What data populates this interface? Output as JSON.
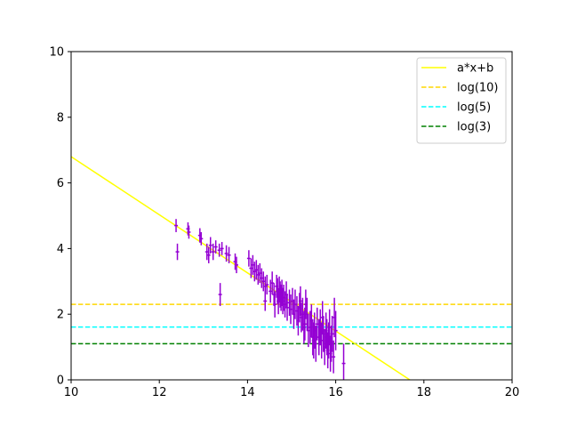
{
  "chart_data": {
    "type": "scatter",
    "xlim": [
      10,
      20
    ],
    "ylim": [
      0,
      10
    ],
    "x_ticks": [
      "10",
      "12",
      "14",
      "16",
      "18",
      "20"
    ],
    "y_ticks": [
      "0",
      "2",
      "4",
      "6",
      "8",
      "10"
    ],
    "grid": false,
    "legend_position": "top-right",
    "fit_line": {
      "name": "a*x+b",
      "color": "#ffff00",
      "x": [
        10,
        17.68
      ],
      "y": [
        6.8,
        0
      ]
    },
    "hlines": [
      {
        "name": "log(10)",
        "value": 2.3,
        "color": "#ffd700",
        "style": "dashed"
      },
      {
        "name": "log(5)",
        "value": 1.61,
        "color": "#00ffff",
        "style": "dashed"
      },
      {
        "name": "log(3)",
        "value": 1.1,
        "color": "#008000",
        "style": "dashed"
      }
    ],
    "points": {
      "color": "#9400d3",
      "x": [
        12.38,
        12.41,
        12.65,
        12.67,
        12.92,
        12.95,
        13.08,
        13.12,
        13.16,
        13.22,
        13.28,
        13.36,
        13.38,
        13.42,
        13.52,
        13.58,
        13.72,
        13.75,
        14.03,
        14.08,
        14.12,
        14.16,
        14.2,
        14.24,
        14.28,
        14.32,
        14.36,
        14.4,
        14.4,
        14.44,
        14.52,
        14.56,
        14.6,
        14.62,
        14.66,
        14.68,
        14.7,
        14.72,
        14.74,
        14.76,
        14.78,
        14.8,
        14.82,
        14.85,
        14.88,
        14.9,
        14.95,
        14.98,
        15.02,
        15.05,
        15.08,
        15.12,
        15.15,
        15.18,
        15.2,
        15.22,
        15.25,
        15.28,
        15.3,
        15.32,
        15.35,
        15.38,
        15.42,
        15.45,
        15.48,
        15.5,
        15.52,
        15.55,
        15.58,
        15.62,
        15.65,
        15.68,
        15.7,
        15.72,
        15.75,
        15.78,
        15.8,
        15.82,
        15.84,
        15.86,
        15.88,
        15.9,
        15.92,
        15.95,
        15.97,
        16.0,
        16.18
      ],
      "y": [
        4.7,
        3.9,
        4.6,
        4.5,
        4.4,
        4.3,
        3.9,
        3.8,
        4.1,
        3.9,
        4.05,
        3.95,
        2.6,
        4.0,
        3.85,
        3.8,
        3.6,
        3.5,
        3.7,
        3.4,
        3.5,
        3.3,
        3.35,
        3.2,
        3.25,
        3.1,
        3.0,
        2.85,
        2.4,
        2.9,
        2.7,
        2.95,
        2.6,
        2.3,
        2.85,
        2.7,
        2.4,
        2.75,
        2.6,
        2.5,
        2.65,
        2.4,
        2.5,
        2.3,
        2.6,
        2.2,
        2.35,
        2.15,
        2.4,
        2.0,
        2.3,
        2.1,
        1.8,
        2.2,
        2.4,
        1.9,
        2.0,
        1.6,
        1.7,
        2.3,
        2.0,
        1.5,
        1.6,
        1.8,
        1.3,
        1.2,
        1.5,
        1.1,
        1.7,
        1.3,
        1.6,
        1.2,
        1.9,
        1.4,
        1.0,
        1.5,
        1.3,
        0.9,
        1.2,
        1.6,
        0.8,
        1.1,
        1.4,
        0.7,
        1.9,
        1.5,
        0.5
      ],
      "yerr": [
        0.2,
        0.25,
        0.2,
        0.2,
        0.22,
        0.2,
        0.25,
        0.25,
        0.25,
        0.25,
        0.2,
        0.2,
        0.35,
        0.2,
        0.25,
        0.25,
        0.25,
        0.25,
        0.25,
        0.3,
        0.3,
        0.3,
        0.3,
        0.3,
        0.3,
        0.3,
        0.3,
        0.3,
        0.3,
        0.3,
        0.35,
        0.35,
        0.35,
        0.4,
        0.35,
        0.4,
        0.4,
        0.4,
        0.4,
        0.4,
        0.4,
        0.4,
        0.4,
        0.4,
        0.4,
        0.4,
        0.4,
        0.45,
        0.4,
        0.45,
        0.45,
        0.45,
        0.45,
        0.45,
        0.45,
        0.45,
        0.5,
        0.5,
        0.5,
        0.45,
        0.5,
        0.5,
        0.5,
        0.5,
        0.55,
        0.55,
        0.55,
        0.55,
        0.5,
        0.55,
        0.55,
        0.55,
        0.5,
        0.55,
        0.55,
        0.55,
        0.55,
        0.55,
        0.55,
        0.55,
        0.55,
        0.55,
        0.55,
        0.5,
        0.6,
        0.6,
        0.6
      ],
      "xerr": 0.04
    }
  }
}
